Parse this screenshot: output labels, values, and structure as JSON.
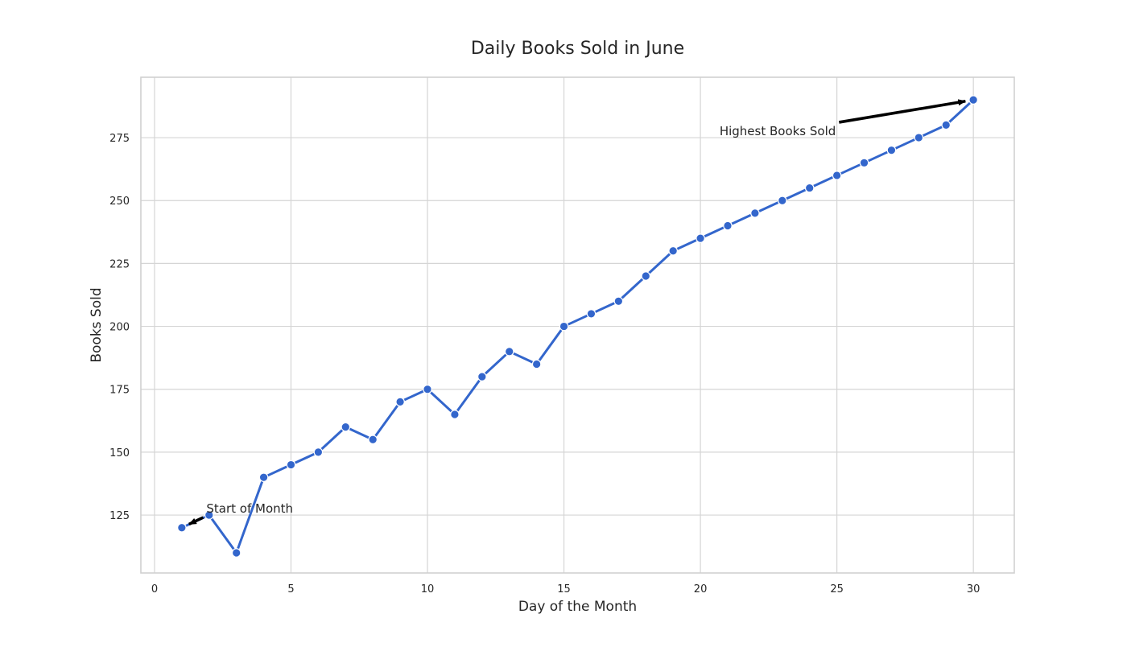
{
  "chart_data": {
    "type": "line",
    "title": "Daily Books Sold in June",
    "xlabel": "Day of the Month",
    "ylabel": "Books Sold",
    "xlim": [
      -0.5,
      31.5
    ],
    "ylim": [
      102,
      299
    ],
    "x_ticks": [
      0,
      5,
      10,
      15,
      20,
      25,
      30
    ],
    "y_ticks": [
      125,
      150,
      175,
      200,
      225,
      250,
      275
    ],
    "grid": true,
    "series": [
      {
        "color": "#3366cc",
        "marker": "circle",
        "x": [
          1,
          2,
          3,
          4,
          5,
          6,
          7,
          8,
          9,
          10,
          11,
          12,
          13,
          14,
          15,
          16,
          17,
          18,
          19,
          20,
          21,
          22,
          23,
          24,
          25,
          26,
          27,
          28,
          29,
          30
        ],
        "y": [
          120,
          125,
          110,
          140,
          145,
          150,
          160,
          155,
          170,
          175,
          165,
          180,
          190,
          185,
          200,
          205,
          210,
          220,
          230,
          235,
          240,
          245,
          250,
          255,
          260,
          265,
          270,
          275,
          280,
          290
        ]
      }
    ],
    "annotations": [
      {
        "text": "Start of Month",
        "point": [
          1,
          120
        ],
        "text_at": [
          1.9,
          126
        ]
      },
      {
        "text": "Highest Books Sold",
        "point": [
          30,
          290
        ],
        "text_at": [
          20.7,
          276
        ]
      }
    ]
  }
}
